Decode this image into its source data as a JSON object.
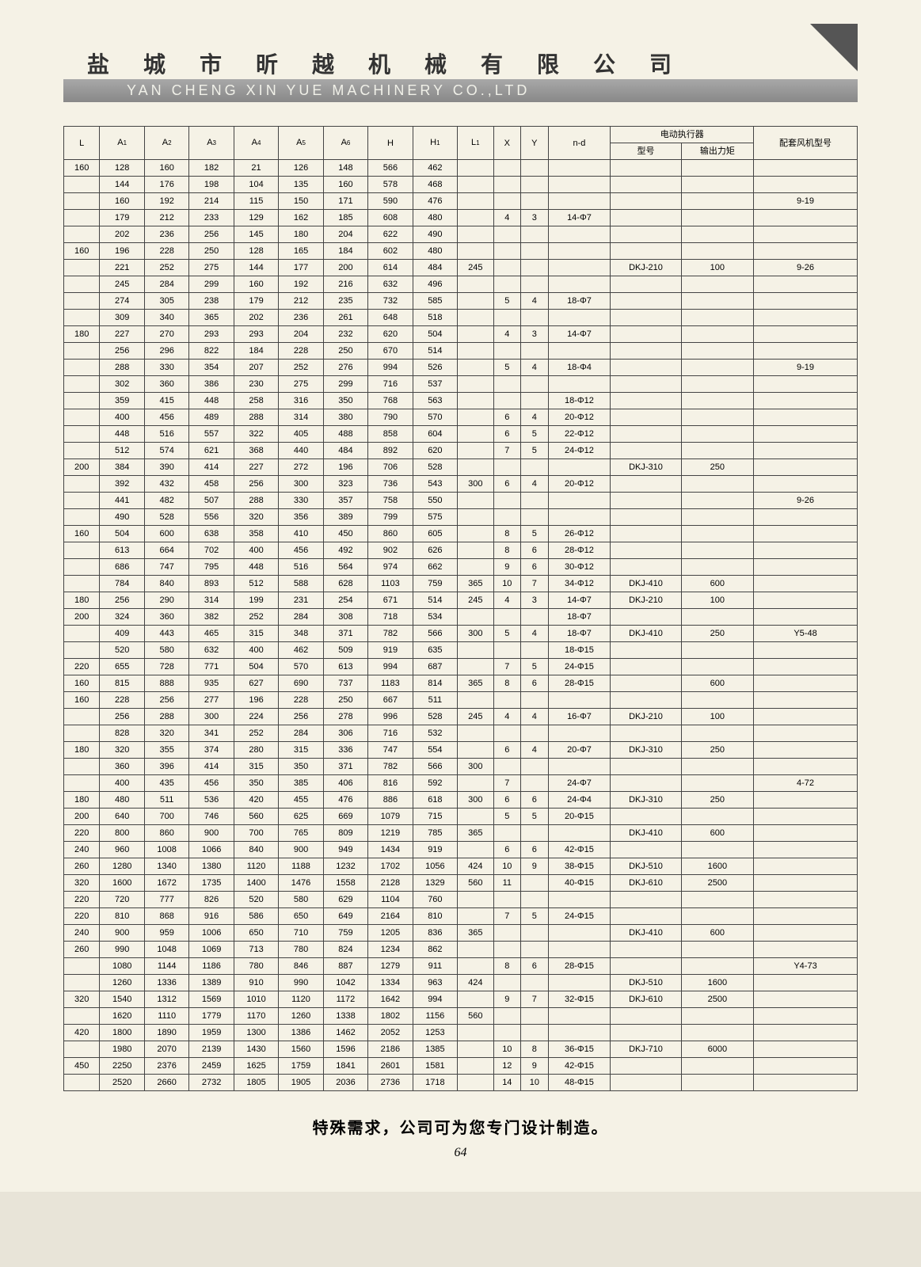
{
  "header": {
    "chinese": "盐 城 市 昕 越 机 械 有 限 公 司",
    "english": "YAN CHENG XIN YUE MACHINERY CO.,LTD"
  },
  "colors": {
    "page_bg": "#f5f2e6",
    "body_bg": "#e8e4d8",
    "band_grad_top": "#a8a8a8",
    "band_grad_bot": "#888888",
    "border": "#444444",
    "text": "#333333"
  },
  "columns": {
    "L": "L",
    "A1": "A₁",
    "A2": "A₂",
    "A3": "A₃",
    "A4": "A₄",
    "A5": "A₅",
    "A6": "A₆",
    "H": "H",
    "H1": "H₁",
    "L1": "L₁",
    "X": "X",
    "Y": "Y",
    "nd": "n-d",
    "actuator_group": "电动执行器",
    "actuator_model": "型号",
    "actuator_torque": "输出力矩",
    "fan_model": "配套风机型号"
  },
  "rows": [
    {
      "L": "160",
      "A1": "128",
      "A2": "160",
      "A3": "182",
      "A4": "21",
      "A5": "126",
      "A6": "148",
      "H": "566",
      "H1": "462",
      "L1": "",
      "X": "",
      "Y": "",
      "nd": "",
      "am": "",
      "at": "",
      "fm": ""
    },
    {
      "L": "",
      "A1": "144",
      "A2": "176",
      "A3": "198",
      "A4": "104",
      "A5": "135",
      "A6": "160",
      "H": "578",
      "H1": "468",
      "L1": "",
      "X": "",
      "Y": "",
      "nd": "",
      "am": "",
      "at": "",
      "fm": ""
    },
    {
      "L": "",
      "A1": "160",
      "A2": "192",
      "A3": "214",
      "A4": "115",
      "A5": "150",
      "A6": "171",
      "H": "590",
      "H1": "476",
      "L1": "",
      "X": "",
      "Y": "",
      "nd": "",
      "am": "",
      "at": "",
      "fm": "9-19"
    },
    {
      "L": "",
      "A1": "179",
      "A2": "212",
      "A3": "233",
      "A4": "129",
      "A5": "162",
      "A6": "185",
      "H": "608",
      "H1": "480",
      "L1": "",
      "X": "4",
      "Y": "3",
      "nd": "14-Φ7",
      "am": "",
      "at": "",
      "fm": ""
    },
    {
      "L": "",
      "A1": "202",
      "A2": "236",
      "A3": "256",
      "A4": "145",
      "A5": "180",
      "A6": "204",
      "H": "622",
      "H1": "490",
      "L1": "",
      "X": "",
      "Y": "",
      "nd": "",
      "am": "",
      "at": "",
      "fm": ""
    },
    {
      "L": "160",
      "A1": "196",
      "A2": "228",
      "A3": "250",
      "A4": "128",
      "A5": "165",
      "A6": "184",
      "H": "602",
      "H1": "480",
      "L1": "",
      "X": "",
      "Y": "",
      "nd": "",
      "am": "",
      "at": "",
      "fm": ""
    },
    {
      "L": "",
      "A1": "221",
      "A2": "252",
      "A3": "275",
      "A4": "144",
      "A5": "177",
      "A6": "200",
      "H": "614",
      "H1": "484",
      "L1": "245",
      "X": "",
      "Y": "",
      "nd": "",
      "am": "DKJ-210",
      "at": "100",
      "fm": "9-26"
    },
    {
      "L": "",
      "A1": "245",
      "A2": "284",
      "A3": "299",
      "A4": "160",
      "A5": "192",
      "A6": "216",
      "H": "632",
      "H1": "496",
      "L1": "",
      "X": "",
      "Y": "",
      "nd": "",
      "am": "",
      "at": "",
      "fm": ""
    },
    {
      "L": "",
      "A1": "274",
      "A2": "305",
      "A3": "238",
      "A4": "179",
      "A5": "212",
      "A6": "235",
      "H": "732",
      "H1": "585",
      "L1": "",
      "X": "5",
      "Y": "4",
      "nd": "18-Φ7",
      "am": "",
      "at": "",
      "fm": ""
    },
    {
      "L": "",
      "A1": "309",
      "A2": "340",
      "A3": "365",
      "A4": "202",
      "A5": "236",
      "A6": "261",
      "H": "648",
      "H1": "518",
      "L1": "",
      "X": "",
      "Y": "",
      "nd": "",
      "am": "",
      "at": "",
      "fm": ""
    },
    {
      "L": "180",
      "A1": "227",
      "A2": "270",
      "A3": "293",
      "A4": "293",
      "A5": "204",
      "A6": "232",
      "H": "620",
      "H1": "504",
      "L1": "",
      "X": "4",
      "Y": "3",
      "nd": "14-Φ7",
      "am": "",
      "at": "",
      "fm": ""
    },
    {
      "L": "",
      "A1": "256",
      "A2": "296",
      "A3": "822",
      "A4": "184",
      "A5": "228",
      "A6": "250",
      "H": "670",
      "H1": "514",
      "L1": "",
      "X": "",
      "Y": "",
      "nd": "",
      "am": "",
      "at": "",
      "fm": ""
    },
    {
      "L": "",
      "A1": "288",
      "A2": "330",
      "A3": "354",
      "A4": "207",
      "A5": "252",
      "A6": "276",
      "H": "994",
      "H1": "526",
      "L1": "",
      "X": "5",
      "Y": "4",
      "nd": "18-Φ4",
      "am": "",
      "at": "",
      "fm": "9-19"
    },
    {
      "L": "",
      "A1": "302",
      "A2": "360",
      "A3": "386",
      "A4": "230",
      "A5": "275",
      "A6": "299",
      "H": "716",
      "H1": "537",
      "L1": "",
      "X": "",
      "Y": "",
      "nd": "",
      "am": "",
      "at": "",
      "fm": ""
    },
    {
      "L": "",
      "A1": "359",
      "A2": "415",
      "A3": "448",
      "A4": "258",
      "A5": "316",
      "A6": "350",
      "H": "768",
      "H1": "563",
      "L1": "",
      "X": "",
      "Y": "",
      "nd": "18-Φ12",
      "am": "",
      "at": "",
      "fm": ""
    },
    {
      "L": "",
      "A1": "400",
      "A2": "456",
      "A3": "489",
      "A4": "288",
      "A5": "314",
      "A6": "380",
      "H": "790",
      "H1": "570",
      "L1": "",
      "X": "6",
      "Y": "4",
      "nd": "20-Φ12",
      "am": "",
      "at": "",
      "fm": ""
    },
    {
      "L": "",
      "A1": "448",
      "A2": "516",
      "A3": "557",
      "A4": "322",
      "A5": "405",
      "A6": "488",
      "H": "858",
      "H1": "604",
      "L1": "",
      "X": "6",
      "Y": "5",
      "nd": "22-Φ12",
      "am": "",
      "at": "",
      "fm": ""
    },
    {
      "L": "",
      "A1": "512",
      "A2": "574",
      "A3": "621",
      "A4": "368",
      "A5": "440",
      "A6": "484",
      "H": "892",
      "H1": "620",
      "L1": "",
      "X": "7",
      "Y": "5",
      "nd": "24-Φ12",
      "am": "",
      "at": "",
      "fm": ""
    },
    {
      "L": "200",
      "A1": "384",
      "A2": "390",
      "A3": "414",
      "A4": "227",
      "A5": "272",
      "A6": "196",
      "H": "706",
      "H1": "528",
      "L1": "",
      "X": "",
      "Y": "",
      "nd": "",
      "am": "DKJ-310",
      "at": "250",
      "fm": ""
    },
    {
      "L": "",
      "A1": "392",
      "A2": "432",
      "A3": "458",
      "A4": "256",
      "A5": "300",
      "A6": "323",
      "H": "736",
      "H1": "543",
      "L1": "300",
      "X": "6",
      "Y": "4",
      "nd": "20-Φ12",
      "am": "",
      "at": "",
      "fm": ""
    },
    {
      "L": "",
      "A1": "441",
      "A2": "482",
      "A3": "507",
      "A4": "288",
      "A5": "330",
      "A6": "357",
      "H": "758",
      "H1": "550",
      "L1": "",
      "X": "",
      "Y": "",
      "nd": "",
      "am": "",
      "at": "",
      "fm": "9-26"
    },
    {
      "L": "",
      "A1": "490",
      "A2": "528",
      "A3": "556",
      "A4": "320",
      "A5": "356",
      "A6": "389",
      "H": "799",
      "H1": "575",
      "L1": "",
      "X": "",
      "Y": "",
      "nd": "",
      "am": "",
      "at": "",
      "fm": ""
    },
    {
      "L": "160",
      "A1": "504",
      "A2": "600",
      "A3": "638",
      "A4": "358",
      "A5": "410",
      "A6": "450",
      "H": "860",
      "H1": "605",
      "L1": "",
      "X": "8",
      "Y": "5",
      "nd": "26-Φ12",
      "am": "",
      "at": "",
      "fm": ""
    },
    {
      "L": "",
      "A1": "613",
      "A2": "664",
      "A3": "702",
      "A4": "400",
      "A5": "456",
      "A6": "492",
      "H": "902",
      "H1": "626",
      "L1": "",
      "X": "8",
      "Y": "6",
      "nd": "28-Φ12",
      "am": "",
      "at": "",
      "fm": ""
    },
    {
      "L": "",
      "A1": "686",
      "A2": "747",
      "A3": "795",
      "A4": "448",
      "A5": "516",
      "A6": "564",
      "H": "974",
      "H1": "662",
      "L1": "",
      "X": "9",
      "Y": "6",
      "nd": "30-Φ12",
      "am": "",
      "at": "",
      "fm": ""
    },
    {
      "L": "",
      "A1": "784",
      "A2": "840",
      "A3": "893",
      "A4": "512",
      "A5": "588",
      "A6": "628",
      "H": "1103",
      "H1": "759",
      "L1": "365",
      "X": "10",
      "Y": "7",
      "nd": "34-Φ12",
      "am": "DKJ-410",
      "at": "600",
      "fm": ""
    },
    {
      "L": "180",
      "A1": "256",
      "A2": "290",
      "A3": "314",
      "A4": "199",
      "A5": "231",
      "A6": "254",
      "H": "671",
      "H1": "514",
      "L1": "245",
      "X": "4",
      "Y": "3",
      "nd": "14-Φ7",
      "am": "DKJ-210",
      "at": "100",
      "fm": ""
    },
    {
      "L": "200",
      "A1": "324",
      "A2": "360",
      "A3": "382",
      "A4": "252",
      "A5": "284",
      "A6": "308",
      "H": "718",
      "H1": "534",
      "L1": "",
      "X": "",
      "Y": "",
      "nd": "18-Φ7",
      "am": "",
      "at": "",
      "fm": ""
    },
    {
      "L": "",
      "A1": "409",
      "A2": "443",
      "A3": "465",
      "A4": "315",
      "A5": "348",
      "A6": "371",
      "H": "782",
      "H1": "566",
      "L1": "300",
      "X": "5",
      "Y": "4",
      "nd": "18-Φ7",
      "am": "DKJ-410",
      "at": "250",
      "fm": "Y5-48"
    },
    {
      "L": "",
      "A1": "520",
      "A2": "580",
      "A3": "632",
      "A4": "400",
      "A5": "462",
      "A6": "509",
      "H": "919",
      "H1": "635",
      "L1": "",
      "X": "",
      "Y": "",
      "nd": "18-Φ15",
      "am": "",
      "at": "",
      "fm": ""
    },
    {
      "L": "220",
      "A1": "655",
      "A2": "728",
      "A3": "771",
      "A4": "504",
      "A5": "570",
      "A6": "613",
      "H": "994",
      "H1": "687",
      "L1": "",
      "X": "7",
      "Y": "5",
      "nd": "24-Φ15",
      "am": "",
      "at": "",
      "fm": ""
    },
    {
      "L": "160",
      "A1": "815",
      "A2": "888",
      "A3": "935",
      "A4": "627",
      "A5": "690",
      "A6": "737",
      "H": "1183",
      "H1": "814",
      "L1": "365",
      "X": "8",
      "Y": "6",
      "nd": "28-Φ15",
      "am": "",
      "at": "600",
      "fm": ""
    },
    {
      "L": "160",
      "A1": "228",
      "A2": "256",
      "A3": "277",
      "A4": "196",
      "A5": "228",
      "A6": "250",
      "H": "667",
      "H1": "511",
      "L1": "",
      "X": "",
      "Y": "",
      "nd": "",
      "am": "",
      "at": "",
      "fm": ""
    },
    {
      "L": "",
      "A1": "256",
      "A2": "288",
      "A3": "300",
      "A4": "224",
      "A5": "256",
      "A6": "278",
      "H": "996",
      "H1": "528",
      "L1": "245",
      "X": "4",
      "Y": "4",
      "nd": "16-Φ7",
      "am": "DKJ-210",
      "at": "100",
      "fm": ""
    },
    {
      "L": "",
      "A1": "828",
      "A2": "320",
      "A3": "341",
      "A4": "252",
      "A5": "284",
      "A6": "306",
      "H": "716",
      "H1": "532",
      "L1": "",
      "X": "",
      "Y": "",
      "nd": "",
      "am": "",
      "at": "",
      "fm": ""
    },
    {
      "L": "180",
      "A1": "320",
      "A2": "355",
      "A3": "374",
      "A4": "280",
      "A5": "315",
      "A6": "336",
      "H": "747",
      "H1": "554",
      "L1": "",
      "X": "6",
      "Y": "4",
      "nd": "20-Φ7",
      "am": "DKJ-310",
      "at": "250",
      "fm": ""
    },
    {
      "L": "",
      "A1": "360",
      "A2": "396",
      "A3": "414",
      "A4": "315",
      "A5": "350",
      "A6": "371",
      "H": "782",
      "H1": "566",
      "L1": "300",
      "X": "",
      "Y": "",
      "nd": "",
      "am": "",
      "at": "",
      "fm": ""
    },
    {
      "L": "",
      "A1": "400",
      "A2": "435",
      "A3": "456",
      "A4": "350",
      "A5": "385",
      "A6": "406",
      "H": "816",
      "H1": "592",
      "L1": "",
      "X": "7",
      "Y": "",
      "nd": "24-Φ7",
      "am": "",
      "at": "",
      "fm": "4-72"
    },
    {
      "L": "180",
      "A1": "480",
      "A2": "511",
      "A3": "536",
      "A4": "420",
      "A5": "455",
      "A6": "476",
      "H": "886",
      "H1": "618",
      "L1": "300",
      "X": "6",
      "Y": "6",
      "nd": "24-Φ4",
      "am": "DKJ-310",
      "at": "250",
      "fm": ""
    },
    {
      "L": "200",
      "A1": "640",
      "A2": "700",
      "A3": "746",
      "A4": "560",
      "A5": "625",
      "A6": "669",
      "H": "1079",
      "H1": "715",
      "L1": "",
      "X": "5",
      "Y": "5",
      "nd": "20-Φ15",
      "am": "",
      "at": "",
      "fm": ""
    },
    {
      "L": "220",
      "A1": "800",
      "A2": "860",
      "A3": "900",
      "A4": "700",
      "A5": "765",
      "A6": "809",
      "H": "1219",
      "H1": "785",
      "L1": "365",
      "X": "",
      "Y": "",
      "nd": "",
      "am": "DKJ-410",
      "at": "600",
      "fm": ""
    },
    {
      "L": "240",
      "A1": "960",
      "A2": "1008",
      "A3": "1066",
      "A4": "840",
      "A5": "900",
      "A6": "949",
      "H": "1434",
      "H1": "919",
      "L1": "",
      "X": "6",
      "Y": "6",
      "nd": "42-Φ15",
      "am": "",
      "at": "",
      "fm": ""
    },
    {
      "L": "260",
      "A1": "1280",
      "A2": "1340",
      "A3": "1380",
      "A4": "1120",
      "A5": "1188",
      "A6": "1232",
      "H": "1702",
      "H1": "1056",
      "L1": "424",
      "X": "10",
      "Y": "9",
      "nd": "38-Φ15",
      "am": "DKJ-510",
      "at": "1600",
      "fm": ""
    },
    {
      "L": "320",
      "A1": "1600",
      "A2": "1672",
      "A3": "1735",
      "A4": "1400",
      "A5": "1476",
      "A6": "1558",
      "H": "2128",
      "H1": "1329",
      "L1": "560",
      "X": "11",
      "Y": "",
      "nd": "40-Φ15",
      "am": "DKJ-610",
      "at": "2500",
      "fm": ""
    },
    {
      "L": "220",
      "A1": "720",
      "A2": "777",
      "A3": "826",
      "A4": "520",
      "A5": "580",
      "A6": "629",
      "H": "1104",
      "H1": "760",
      "L1": "",
      "X": "",
      "Y": "",
      "nd": "",
      "am": "",
      "at": "",
      "fm": ""
    },
    {
      "L": "220",
      "A1": "810",
      "A2": "868",
      "A3": "916",
      "A4": "586",
      "A5": "650",
      "A6": "649",
      "H": "2164",
      "H1": "810",
      "L1": "",
      "X": "7",
      "Y": "5",
      "nd": "24-Φ15",
      "am": "",
      "at": "",
      "fm": ""
    },
    {
      "L": "240",
      "A1": "900",
      "A2": "959",
      "A3": "1006",
      "A4": "650",
      "A5": "710",
      "A6": "759",
      "H": "1205",
      "H1": "836",
      "L1": "365",
      "X": "",
      "Y": "",
      "nd": "",
      "am": "DKJ-410",
      "at": "600",
      "fm": ""
    },
    {
      "L": "260",
      "A1": "990",
      "A2": "1048",
      "A3": "1069",
      "A4": "713",
      "A5": "780",
      "A6": "824",
      "H": "1234",
      "H1": "862",
      "L1": "",
      "X": "",
      "Y": "",
      "nd": "",
      "am": "",
      "at": "",
      "fm": ""
    },
    {
      "L": "",
      "A1": "1080",
      "A2": "1144",
      "A3": "1186",
      "A4": "780",
      "A5": "846",
      "A6": "887",
      "H": "1279",
      "H1": "911",
      "L1": "",
      "X": "8",
      "Y": "6",
      "nd": "28-Φ15",
      "am": "",
      "at": "",
      "fm": "Y4-73"
    },
    {
      "L": "",
      "A1": "1260",
      "A2": "1336",
      "A3": "1389",
      "A4": "910",
      "A5": "990",
      "A6": "1042",
      "H": "1334",
      "H1": "963",
      "L1": "424",
      "X": "",
      "Y": "",
      "nd": "",
      "am": "DKJ-510",
      "at": "1600",
      "fm": ""
    },
    {
      "L": "320",
      "A1": "1540",
      "A2": "1312",
      "A3": "1569",
      "A4": "1010",
      "A5": "1120",
      "A6": "1172",
      "H": "1642",
      "H1": "994",
      "L1": "",
      "X": "9",
      "Y": "7",
      "nd": "32-Φ15",
      "am": "DKJ-610",
      "at": "2500",
      "fm": ""
    },
    {
      "L": "",
      "A1": "1620",
      "A2": "1110",
      "A3": "1779",
      "A4": "1170",
      "A5": "1260",
      "A6": "1338",
      "H": "1802",
      "H1": "1156",
      "L1": "560",
      "X": "",
      "Y": "",
      "nd": "",
      "am": "",
      "at": "",
      "fm": ""
    },
    {
      "L": "420",
      "A1": "1800",
      "A2": "1890",
      "A3": "1959",
      "A4": "1300",
      "A5": "1386",
      "A6": "1462",
      "H": "2052",
      "H1": "1253",
      "L1": "",
      "X": "",
      "Y": "",
      "nd": "",
      "am": "",
      "at": "",
      "fm": ""
    },
    {
      "L": "",
      "A1": "1980",
      "A2": "2070",
      "A3": "2139",
      "A4": "1430",
      "A5": "1560",
      "A6": "1596",
      "H": "2186",
      "H1": "1385",
      "L1": "",
      "X": "10",
      "Y": "8",
      "nd": "36-Φ15",
      "am": "DKJ-710",
      "at": "6000",
      "fm": ""
    },
    {
      "L": "450",
      "A1": "2250",
      "A2": "2376",
      "A3": "2459",
      "A4": "1625",
      "A5": "1759",
      "A6": "1841",
      "H": "2601",
      "H1": "1581",
      "L1": "",
      "X": "12",
      "Y": "9",
      "nd": "42-Φ15",
      "am": "",
      "at": "",
      "fm": ""
    },
    {
      "L": "",
      "A1": "2520",
      "A2": "2660",
      "A3": "2732",
      "A4": "1805",
      "A5": "1905",
      "A6": "2036",
      "H": "2736",
      "H1": "1718",
      "L1": "",
      "X": "14",
      "Y": "10",
      "nd": "48-Φ15",
      "am": "",
      "at": "",
      "fm": ""
    }
  ],
  "footer": "特殊需求，公司可为您专门设计制造。",
  "page_number": "64"
}
